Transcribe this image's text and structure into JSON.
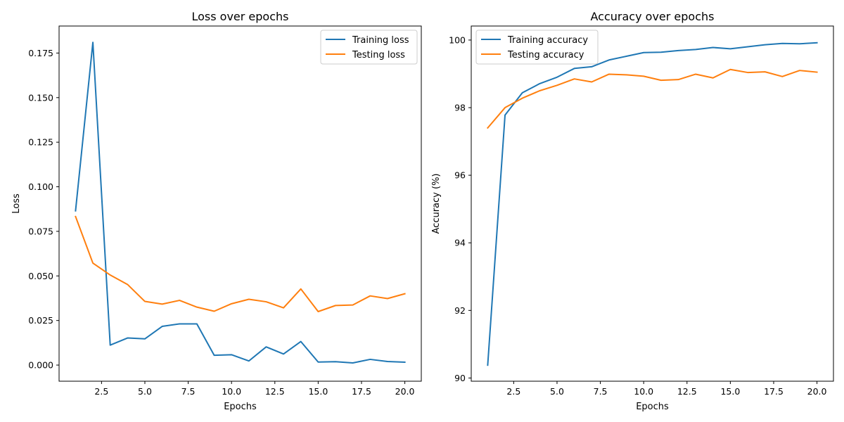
{
  "chart_data": [
    {
      "type": "line",
      "title": "Loss over epochs",
      "xlabel": "Epochs",
      "ylabel": "Loss",
      "xlim": [
        0.05,
        20.95
      ],
      "ylim": [
        -0.00905,
        0.19015
      ],
      "xticks": [
        2.5,
        5.0,
        7.5,
        10.0,
        12.5,
        15.0,
        17.5,
        20.0
      ],
      "xtick_labels": [
        "2.5",
        "5.0",
        "7.5",
        "10.0",
        "12.5",
        "15.0",
        "17.5",
        "20.0"
      ],
      "yticks": [
        0.0,
        0.025,
        0.05,
        0.075,
        0.1,
        0.125,
        0.15,
        0.175
      ],
      "ytick_labels": [
        "0.000",
        "0.025",
        "0.050",
        "0.075",
        "0.100",
        "0.125",
        "0.150",
        "0.175"
      ],
      "grid": false,
      "legend_position": "top-right",
      "x": [
        1,
        2,
        3,
        4,
        5,
        6,
        7,
        8,
        9,
        10,
        11,
        12,
        13,
        14,
        15,
        16,
        17,
        18,
        19,
        20
      ],
      "series": [
        {
          "name": "Training loss",
          "color": "#1f77b4",
          "values": [
            0.0865,
            0.181,
            0.0112,
            0.0152,
            0.0147,
            0.0217,
            0.0231,
            0.0231,
            0.0055,
            0.0058,
            0.0023,
            0.0102,
            0.0062,
            0.0132,
            0.0017,
            0.0019,
            0.0012,
            0.0032,
            0.002,
            0.0016
          ]
        },
        {
          "name": "Testing loss",
          "color": "#ff7f0e",
          "values": [
            0.0833,
            0.0572,
            0.0505,
            0.0452,
            0.0357,
            0.0342,
            0.0363,
            0.0325,
            0.0302,
            0.0344,
            0.0369,
            0.0355,
            0.0321,
            0.0427,
            0.03,
            0.0334,
            0.0337,
            0.0388,
            0.0373,
            0.04
          ]
        }
      ]
    },
    {
      "type": "line",
      "title": "Accuracy over epochs",
      "xlabel": "Epochs",
      "ylabel": "Accuracy (%)",
      "xlim": [
        0.05,
        20.95
      ],
      "ylim": [
        89.905,
        100.415
      ],
      "xticks": [
        2.5,
        5.0,
        7.5,
        10.0,
        12.5,
        15.0,
        17.5,
        20.0
      ],
      "xtick_labels": [
        "2.5",
        "5.0",
        "7.5",
        "10.0",
        "12.5",
        "15.0",
        "17.5",
        "20.0"
      ],
      "yticks": [
        90,
        92,
        94,
        96,
        98,
        100
      ],
      "ytick_labels": [
        "90",
        "92",
        "94",
        "96",
        "98",
        "100"
      ],
      "grid": false,
      "legend_position": "top-left",
      "x": [
        1,
        2,
        3,
        4,
        5,
        6,
        7,
        8,
        9,
        10,
        11,
        12,
        13,
        14,
        15,
        16,
        17,
        18,
        19,
        20
      ],
      "series": [
        {
          "name": "Training accuracy",
          "color": "#1f77b4",
          "values": [
            90.38,
            97.78,
            98.44,
            98.71,
            98.9,
            99.16,
            99.21,
            99.41,
            99.52,
            99.63,
            99.64,
            99.69,
            99.72,
            99.78,
            99.74,
            99.8,
            99.86,
            99.9,
            99.89,
            99.92
          ]
        },
        {
          "name": "Testing accuracy",
          "color": "#ff7f0e",
          "values": [
            97.4,
            98.0,
            98.28,
            98.5,
            98.66,
            98.85,
            98.76,
            98.99,
            98.97,
            98.93,
            98.81,
            98.83,
            98.99,
            98.88,
            99.13,
            99.04,
            99.06,
            98.92,
            99.1,
            99.05
          ]
        }
      ]
    }
  ]
}
